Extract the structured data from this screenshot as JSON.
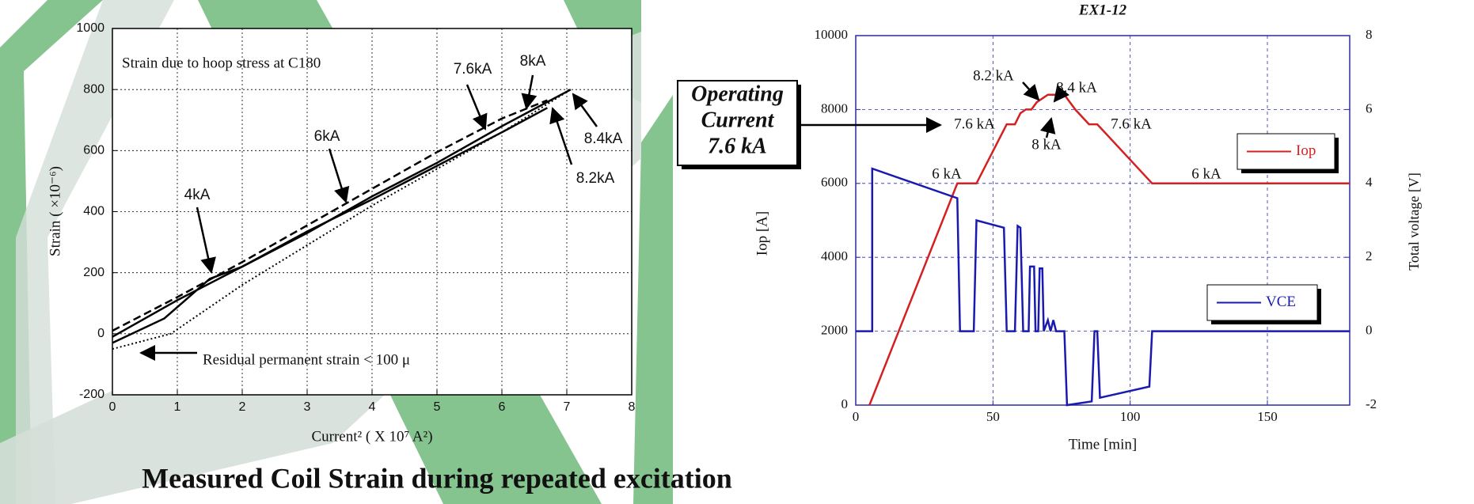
{
  "chart_data": [
    {
      "type": "line",
      "x_label": "Current² ( X 10⁷ A²)",
      "y_label": "Strain ( ×10⁻⁶)",
      "caption": "Measured Coil Strain during repeated excitation",
      "xlim": [
        0,
        8
      ],
      "xticks": [
        0,
        1,
        2,
        3,
        4,
        5,
        6,
        7,
        8
      ],
      "ylim": [
        -200,
        1000
      ],
      "yticks": [
        -200,
        0,
        200,
        400,
        600,
        800,
        1000
      ],
      "grid": true,
      "annotations": [
        "Strain due to hoop stress at C180",
        "4kA",
        "6kA",
        "7.6kA",
        "8kA",
        "8.4kA",
        "8.2kA",
        "Residual permanent strain < 100 μ"
      ],
      "series": [
        {
          "color": "#000000",
          "style": "solid",
          "x": [
            0,
            1,
            2,
            3,
            4,
            5,
            6,
            7.06
          ],
          "values": [
            -10,
            110,
            220,
            330,
            450,
            560,
            680,
            800
          ]
        },
        {
          "color": "#000000",
          "style": "dashed",
          "x": [
            0,
            1,
            2,
            3,
            4,
            5,
            6,
            6.7
          ],
          "values": [
            10,
            120,
            235,
            355,
            475,
            595,
            705,
            765
          ]
        },
        {
          "color": "#000000",
          "style": "solid",
          "x": [
            0,
            0.8,
            1.5,
            2,
            3,
            4,
            5,
            6,
            6.7
          ],
          "values": [
            -30,
            50,
            180,
            220,
            335,
            440,
            550,
            660,
            740
          ]
        },
        {
          "color": "#000000",
          "style": "dotted",
          "x": [
            0,
            0.9,
            2,
            3,
            4,
            5,
            6,
            7.06
          ],
          "values": [
            -50,
            0,
            160,
            290,
            420,
            540,
            660,
            800
          ]
        }
      ]
    },
    {
      "type": "line",
      "title": "EX1-12",
      "x_label": "Time [min]",
      "y_label": "Iop [A]",
      "y2_label": "Total voltage [V]",
      "xlim": [
        0,
        180
      ],
      "xticks": [
        0,
        50,
        100,
        150
      ],
      "ylim": [
        0,
        10000
      ],
      "yticks": [
        0,
        2000,
        4000,
        6000,
        8000,
        10000
      ],
      "y2lim": [
        -2,
        8
      ],
      "y2ticks": [
        -2,
        0,
        2,
        4,
        6,
        8
      ],
      "grid": true,
      "annotations": [
        "8.2 kA",
        "8.4 kA",
        "7.6 kA",
        "8 kA",
        "7.6 kA",
        "6 kA",
        "6 kA"
      ],
      "callout": [
        "Operating",
        "Current",
        "7.6 kA"
      ],
      "series": [
        {
          "name": "Iop",
          "color": "#d42020",
          "x": [
            5,
            37,
            44,
            55,
            58,
            60,
            62,
            64,
            66,
            70,
            76,
            80,
            85,
            88,
            108,
            180
          ],
          "values": [
            0,
            6000,
            6000,
            7600,
            7600,
            7900,
            8000,
            8000,
            8200,
            8400,
            8400,
            8000,
            7600,
            7600,
            6000,
            6000
          ]
        },
        {
          "name": "VCE",
          "color": "#1a1ab0",
          "axis": "y2",
          "x": [
            0,
            6,
            6,
            37,
            38,
            43,
            44,
            54,
            55,
            58,
            59,
            60,
            61,
            63,
            63.5,
            65,
            65.5,
            66.5,
            67,
            68,
            68.5,
            70,
            71,
            72,
            73,
            76,
            77,
            86,
            87,
            88,
            89,
            107,
            108,
            180
          ],
          "values": [
            0,
            0,
            4.4,
            3.6,
            0,
            0,
            3.0,
            2.8,
            0,
            0,
            2.85,
            2.8,
            0,
            0,
            1.75,
            1.75,
            0,
            0,
            1.7,
            1.7,
            0,
            0.3,
            0,
            0.3,
            0,
            0,
            -2,
            -1.9,
            0,
            0,
            -1.8,
            -1.5,
            0,
            0
          ]
        }
      ]
    }
  ]
}
